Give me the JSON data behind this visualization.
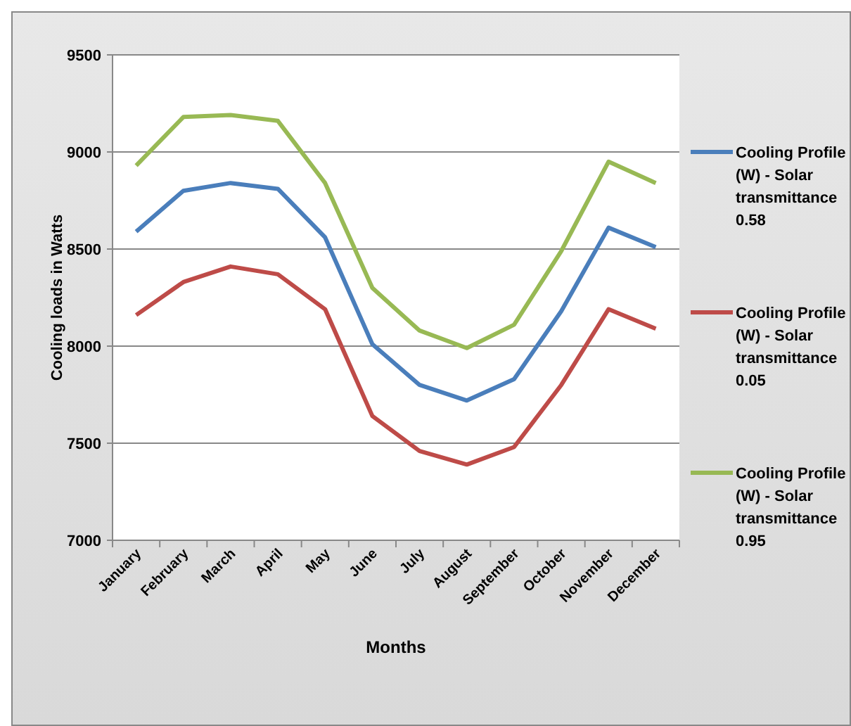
{
  "chart_data": {
    "type": "line",
    "xlabel": "Months",
    "ylabel": "Cooling loads in Watts",
    "categories": [
      "January",
      "February",
      "March",
      "April",
      "May",
      "June",
      "July",
      "August",
      "September",
      "October",
      "November",
      "December"
    ],
    "series": [
      {
        "name": "Cooling Profile (W) - Solar transmittance 0.58",
        "color": "#4a7ebb",
        "values": [
          8590,
          8800,
          8840,
          8810,
          8560,
          8010,
          7800,
          7720,
          7830,
          8180,
          8610,
          8510
        ]
      },
      {
        "name": "Cooling Profile (W) - Solar transmittance 0.05",
        "color": "#be4b48",
        "values": [
          8160,
          8330,
          8410,
          8370,
          8190,
          7640,
          7460,
          7390,
          7480,
          7800,
          8190,
          8090
        ]
      },
      {
        "name": "Cooling Profile (W) - Solar transmittance 0.95",
        "color": "#98b954",
        "values": [
          8930,
          9180,
          9190,
          9160,
          8840,
          8300,
          8080,
          7990,
          8110,
          8490,
          8950,
          8840
        ]
      }
    ],
    "ylim": [
      7000,
      9500
    ],
    "yticks": [
      7000,
      7500,
      8000,
      8500,
      9000,
      9500
    ],
    "grid": "y",
    "legend": "right",
    "marker": "none",
    "line_style": "solid"
  }
}
